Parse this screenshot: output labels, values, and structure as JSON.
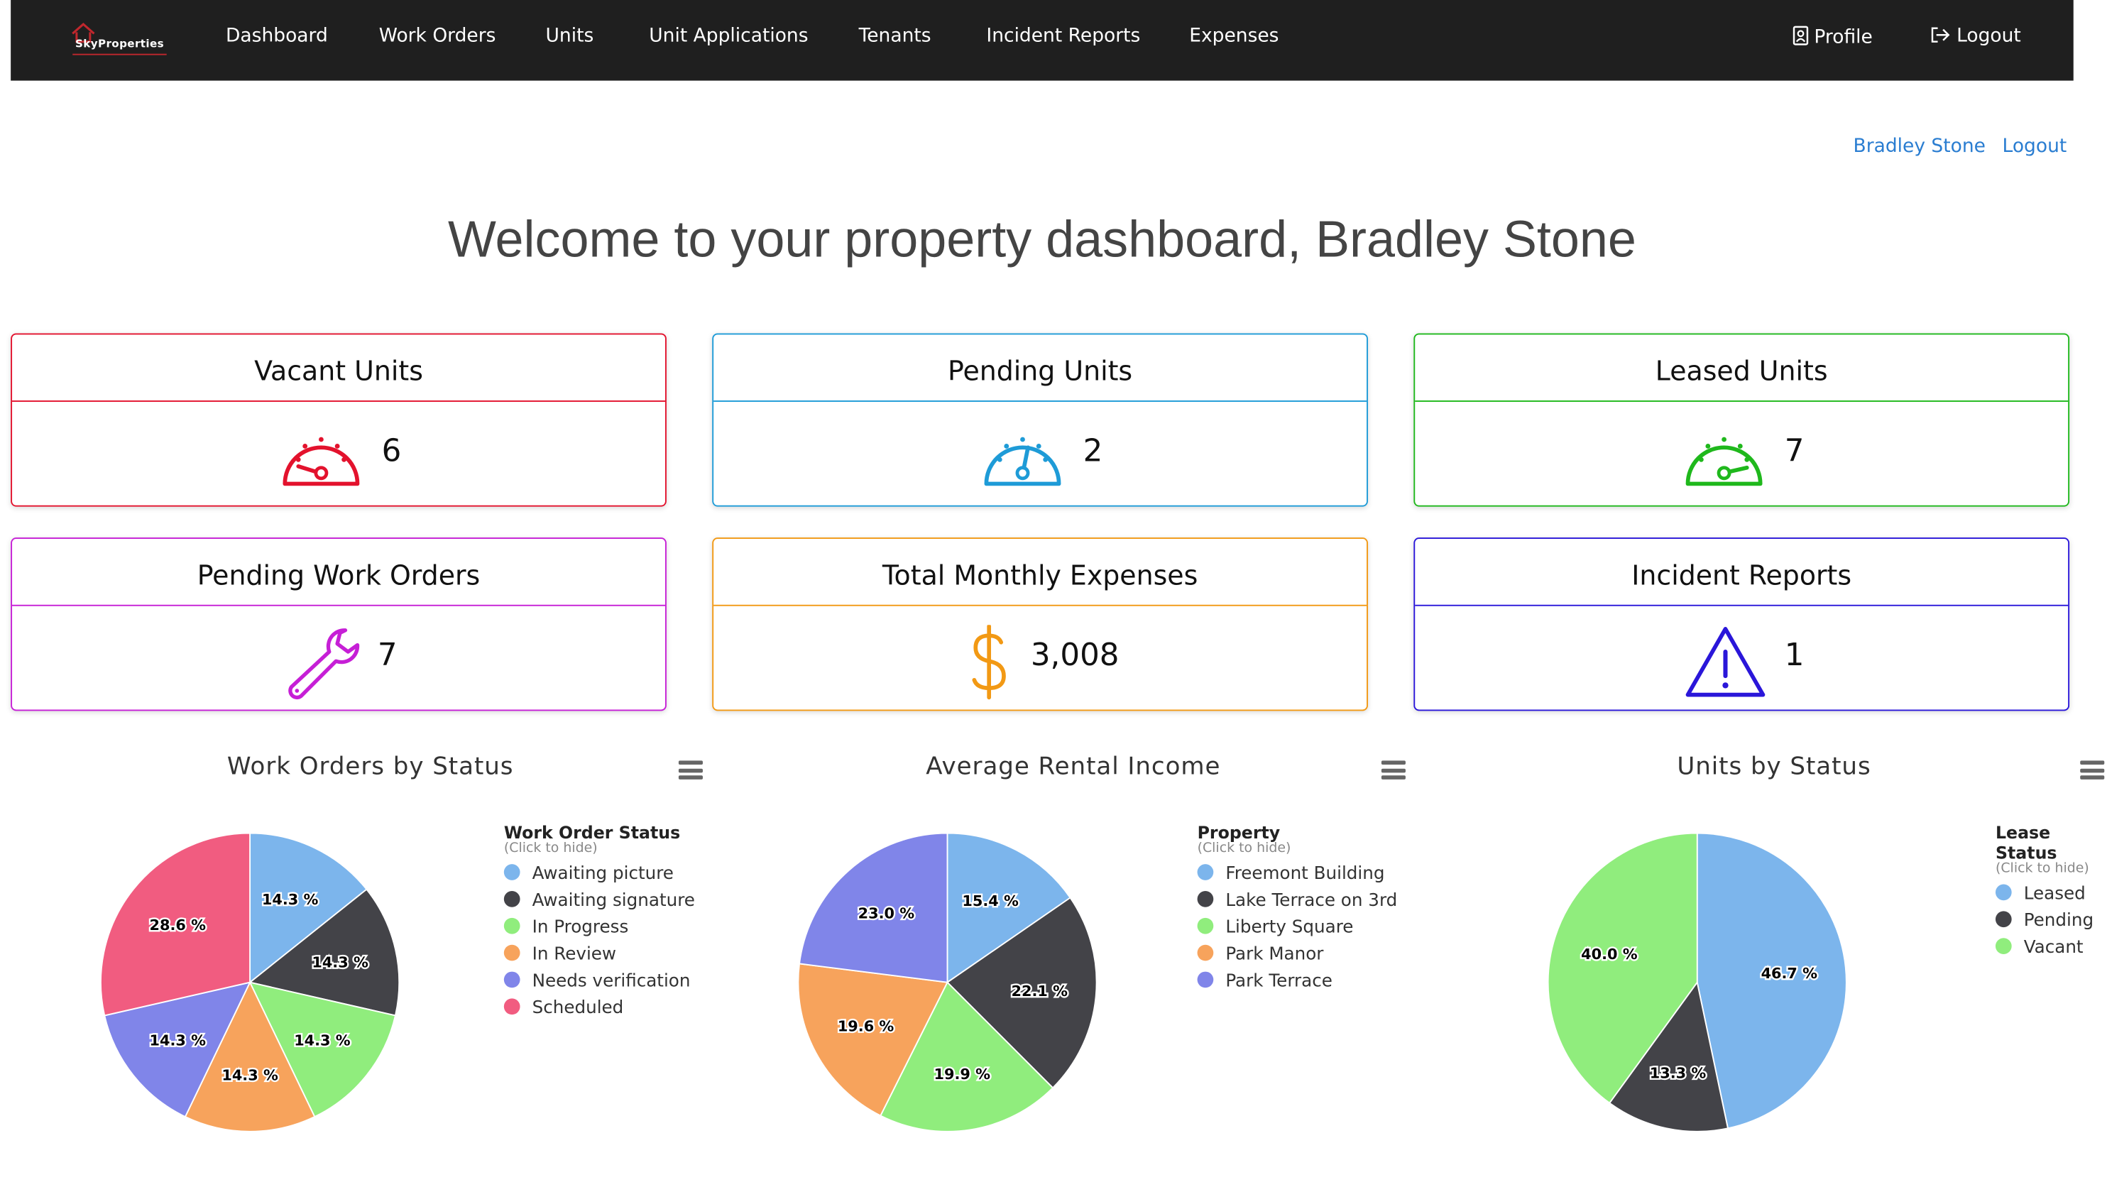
{
  "brand": {
    "name": "SkyProperties"
  },
  "nav": {
    "items": [
      "Dashboard",
      "Work Orders",
      "Units",
      "Unit Applications",
      "Tenants",
      "Incident Reports",
      "Expenses"
    ],
    "profile": "Profile",
    "logout": "Logout"
  },
  "user": {
    "name": "Bradley Stone",
    "logout": "Logout"
  },
  "welcome": "Welcome to your property dashboard, Bradley Stone",
  "cards": [
    {
      "title": "Vacant Units",
      "value": "6",
      "color": "#e3122d",
      "icon": "gauge-low-icon"
    },
    {
      "title": "Pending Units",
      "value": "2",
      "color": "#1e9bd7",
      "icon": "gauge-mid-icon"
    },
    {
      "title": "Leased Units",
      "value": "7",
      "color": "#1fb81c",
      "icon": "gauge-high-icon"
    },
    {
      "title": "Pending Work Orders",
      "value": "7",
      "color": "#c61fd6",
      "icon": "wrench-icon"
    },
    {
      "title": "Total Monthly Expenses",
      "value": "3,008",
      "color": "#f29914",
      "icon": "dollar-icon"
    },
    {
      "title": "Incident Reports",
      "value": "1",
      "color": "#2a16d9",
      "icon": "warning-icon"
    }
  ],
  "chart_data": [
    {
      "type": "pie",
      "title": "Work Orders by Status",
      "legend_title": "Work Order Status",
      "legend_hint": "(Click to hide)",
      "legend_position": "right",
      "categories": [
        "Awaiting picture",
        "Awaiting signature",
        "In Progress",
        "In Review",
        "Needs verification",
        "Scheduled"
      ],
      "values": [
        14.3,
        14.3,
        14.3,
        14.3,
        14.3,
        28.6
      ],
      "labels": [
        "14.3 %",
        "14.3 %",
        "14.3 %",
        "14.3 %",
        "14.3 %",
        "28.6 %"
      ],
      "colors": [
        "#7cb5ec",
        "#434348",
        "#90ed7d",
        "#f7a35c",
        "#8085e9",
        "#f15c80"
      ]
    },
    {
      "type": "pie",
      "title": "Average Rental Income",
      "legend_title": "Property",
      "legend_hint": "(Click to hide)",
      "legend_position": "right",
      "categories": [
        "Freemont Building",
        "Lake Terrace on 3rd",
        "Liberty Square",
        "Park Manor",
        "Park Terrace"
      ],
      "values": [
        15.4,
        22.1,
        19.9,
        19.6,
        23.0
      ],
      "labels": [
        "15.4 %",
        "22.1 %",
        "19.9 %",
        "19.6 %",
        "23.0 %"
      ],
      "colors": [
        "#7cb5ec",
        "#434348",
        "#90ed7d",
        "#f7a35c",
        "#8085e9"
      ]
    },
    {
      "type": "pie",
      "title": "Units by Status",
      "legend_title": "Lease Status",
      "legend_hint": "(Click to hide)",
      "legend_position": "right",
      "categories": [
        "Leased",
        "Pending",
        "Vacant"
      ],
      "values": [
        46.7,
        13.3,
        40.0
      ],
      "labels": [
        "46.7 %",
        "13.3 %",
        "40.0 %"
      ],
      "colors": [
        "#7cb5ec",
        "#434348",
        "#90ed7d"
      ]
    }
  ]
}
